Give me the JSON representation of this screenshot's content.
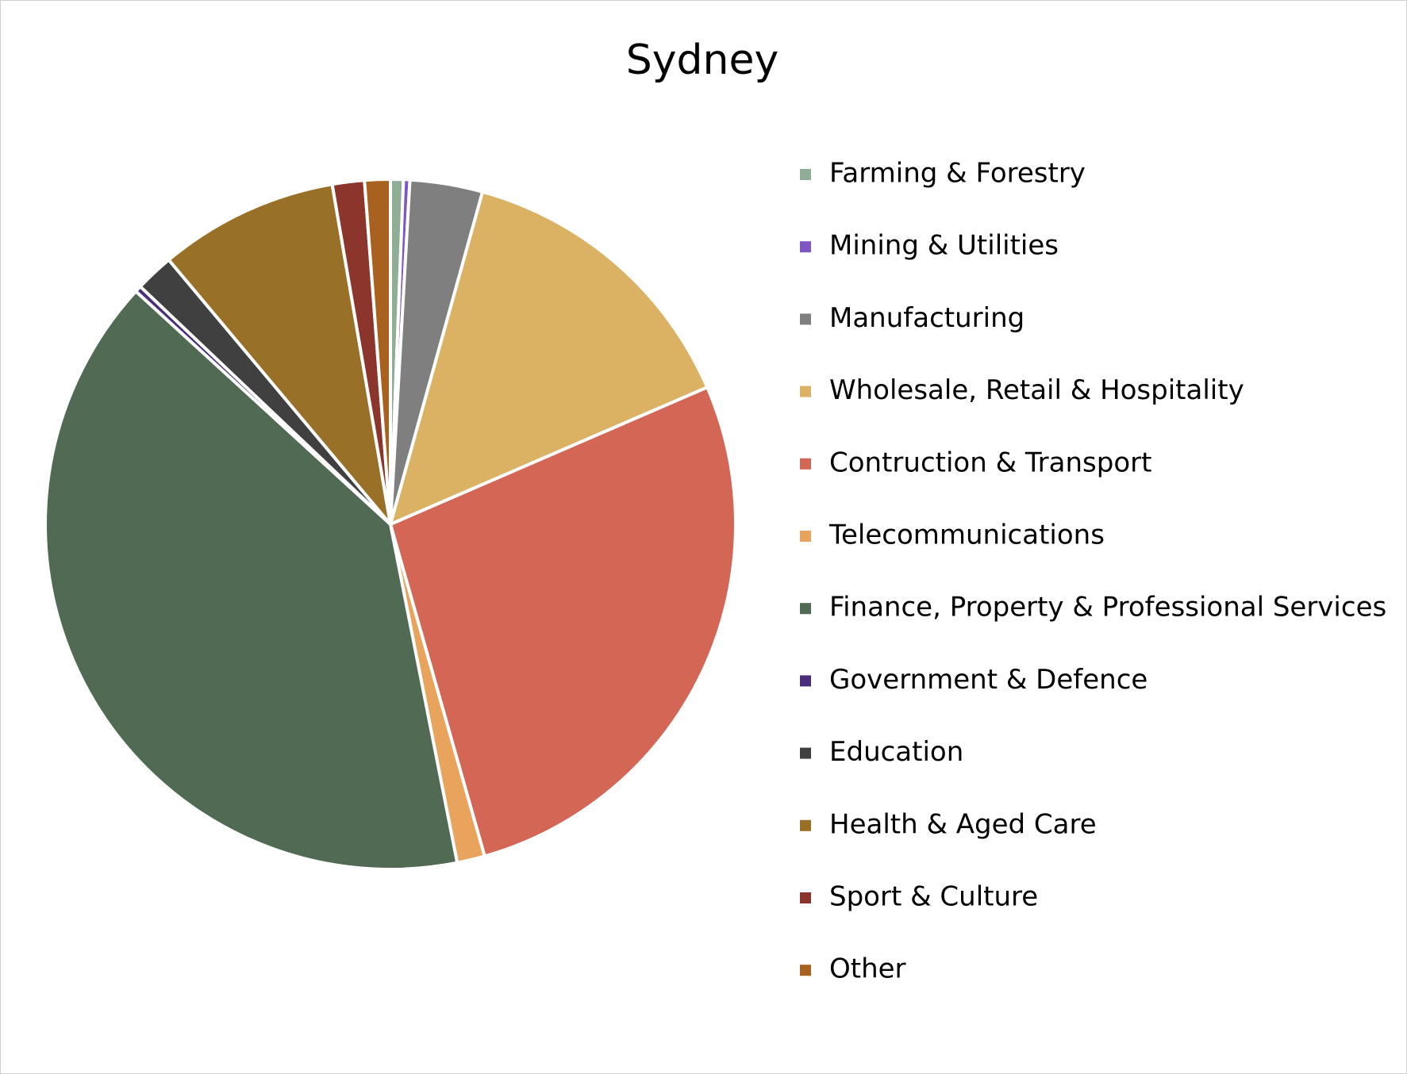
{
  "chart_data": {
    "type": "pie",
    "title": "Sydney",
    "categories": [
      "Farming & Forestry",
      "Mining & Utilities",
      "Manufacturing",
      "Wholesale, Retail & Hospitality",
      "Contruction & Transport",
      "Telecommunications",
      "Finance, Property & Professional Services",
      "Government & Defence",
      "Education",
      "Health & Aged Care",
      "Sport & Culture",
      "Other"
    ],
    "values": [
      0.6,
      0.3,
      3.4,
      14.2,
      27.1,
      1.3,
      39.9,
      0.3,
      1.8,
      8.4,
      1.5,
      1.2
    ],
    "colors": [
      "#8fae95",
      "#7e57c2",
      "#7f7f7f",
      "#dbb163",
      "#d36654",
      "#e8a45c",
      "#506a54",
      "#4b2e7a",
      "#404040",
      "#987027",
      "#8b352c",
      "#a8611e"
    ],
    "legend": "right"
  }
}
